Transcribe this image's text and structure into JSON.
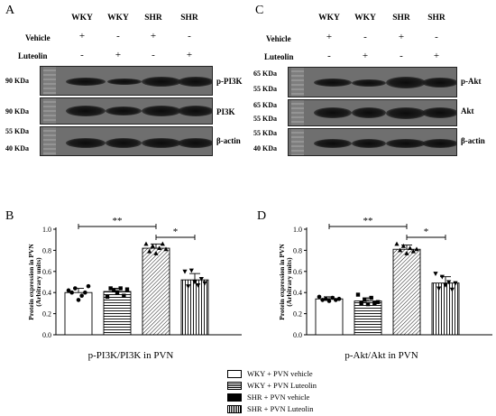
{
  "blots": [
    {
      "panel": "A",
      "lanes": [
        "WKY",
        "WKY",
        "SHR",
        "SHR"
      ],
      "vehicle_label": "Vehicle",
      "vehicle_signs": [
        "+",
        "-",
        "+",
        "-"
      ],
      "luteolin_label": "Luteolin",
      "luteolin_signs": [
        "-",
        "+",
        "-",
        "+"
      ],
      "rows": [
        {
          "marker": "90 KDa",
          "label": "p-PI3K"
        },
        {
          "marker": "90 KDa",
          "label": "PI3K"
        },
        {
          "marker_top": "55 KDa",
          "marker": "40 KDa",
          "label": "β-actin"
        }
      ]
    },
    {
      "panel": "C",
      "lanes": [
        "WKY",
        "WKY",
        "SHR",
        "SHR"
      ],
      "vehicle_label": "Vehicle",
      "vehicle_signs": [
        "+",
        "-",
        "+",
        "-"
      ],
      "luteolin_label": "Luteolin",
      "luteolin_signs": [
        "-",
        "+",
        "-",
        "+"
      ],
      "rows": [
        {
          "marker_top": "65 KDa",
          "marker": "55 KDa",
          "label": "p-Akt"
        },
        {
          "marker_top": "65 KDa",
          "marker": "55 KDa",
          "label": "Akt"
        },
        {
          "marker_top": "55 KDa",
          "marker": "40 KDa",
          "label": "β-actin"
        }
      ]
    }
  ],
  "chart_data": [
    {
      "panel": "B",
      "type": "bar",
      "categories": [
        "WKY + PVN vehicle",
        "WKY + PVN Luteolin",
        "SHR + PVN vehicle",
        "SHR + PVN Luteolin"
      ],
      "values": [
        0.4,
        0.41,
        0.82,
        0.52
      ],
      "errors": [
        0.04,
        0.03,
        0.04,
        0.06
      ],
      "points": [
        [
          0.42,
          0.4,
          0.44,
          0.33,
          0.37,
          0.4,
          0.46
        ],
        [
          0.36,
          0.44,
          0.42,
          0.4,
          0.44,
          0.37,
          0.43
        ],
        [
          0.86,
          0.79,
          0.84,
          0.77,
          0.82,
          0.86,
          0.81
        ],
        [
          0.6,
          0.46,
          0.61,
          0.5,
          0.47,
          0.53,
          0.49
        ]
      ],
      "xlabel": "p-PI3K/PI3K  in PVN",
      "ylabel": "Protein expression in PVN",
      "ylabel2": "(Arbitrary units)",
      "ylim": [
        0,
        1.0
      ],
      "yticks": [
        "0.0",
        "0.2",
        "0.4",
        "0.6",
        "0.8",
        "1.0"
      ],
      "significance": [
        {
          "from": 0,
          "to": 2,
          "label": "**"
        },
        {
          "from": 2,
          "to": 3,
          "label": "*"
        }
      ]
    },
    {
      "panel": "D",
      "type": "bar",
      "categories": [
        "WKY + PVN vehicle",
        "WKY + PVN Luteolin",
        "SHR + PVN vehicle",
        "SHR + PVN Luteolin"
      ],
      "values": [
        0.34,
        0.32,
        0.81,
        0.49
      ],
      "errors": [
        0.02,
        0.03,
        0.04,
        0.06
      ],
      "points": [
        [
          0.36,
          0.33,
          0.34,
          0.32,
          0.35,
          0.33,
          0.34
        ],
        [
          0.38,
          0.3,
          0.33,
          0.29,
          0.35,
          0.3,
          0.31
        ],
        [
          0.86,
          0.8,
          0.84,
          0.77,
          0.82,
          0.79,
          0.81
        ],
        [
          0.58,
          0.44,
          0.55,
          0.47,
          0.5,
          0.43,
          0.49
        ]
      ],
      "xlabel": "p-Akt/Akt  in PVN",
      "ylabel": "Protein expression in PVN",
      "ylabel2": "(Arbitrary units)",
      "ylim": [
        0,
        1.0
      ],
      "yticks": [
        "0.0",
        "0.2",
        "0.4",
        "0.6",
        "0.8",
        "1.0"
      ],
      "significance": [
        {
          "from": 0,
          "to": 2,
          "label": "**"
        },
        {
          "from": 2,
          "to": 3,
          "label": "*"
        }
      ]
    }
  ],
  "legend": [
    {
      "label": "WKY + PVN vehicle",
      "pattern": "white"
    },
    {
      "label": "WKY + PVN Luteolin",
      "pattern": "horizontal-lines"
    },
    {
      "label": "SHR + PVN vehicle",
      "pattern": "black"
    },
    {
      "label": "SHR + PVN Luteolin",
      "pattern": "vertical-lines"
    }
  ]
}
